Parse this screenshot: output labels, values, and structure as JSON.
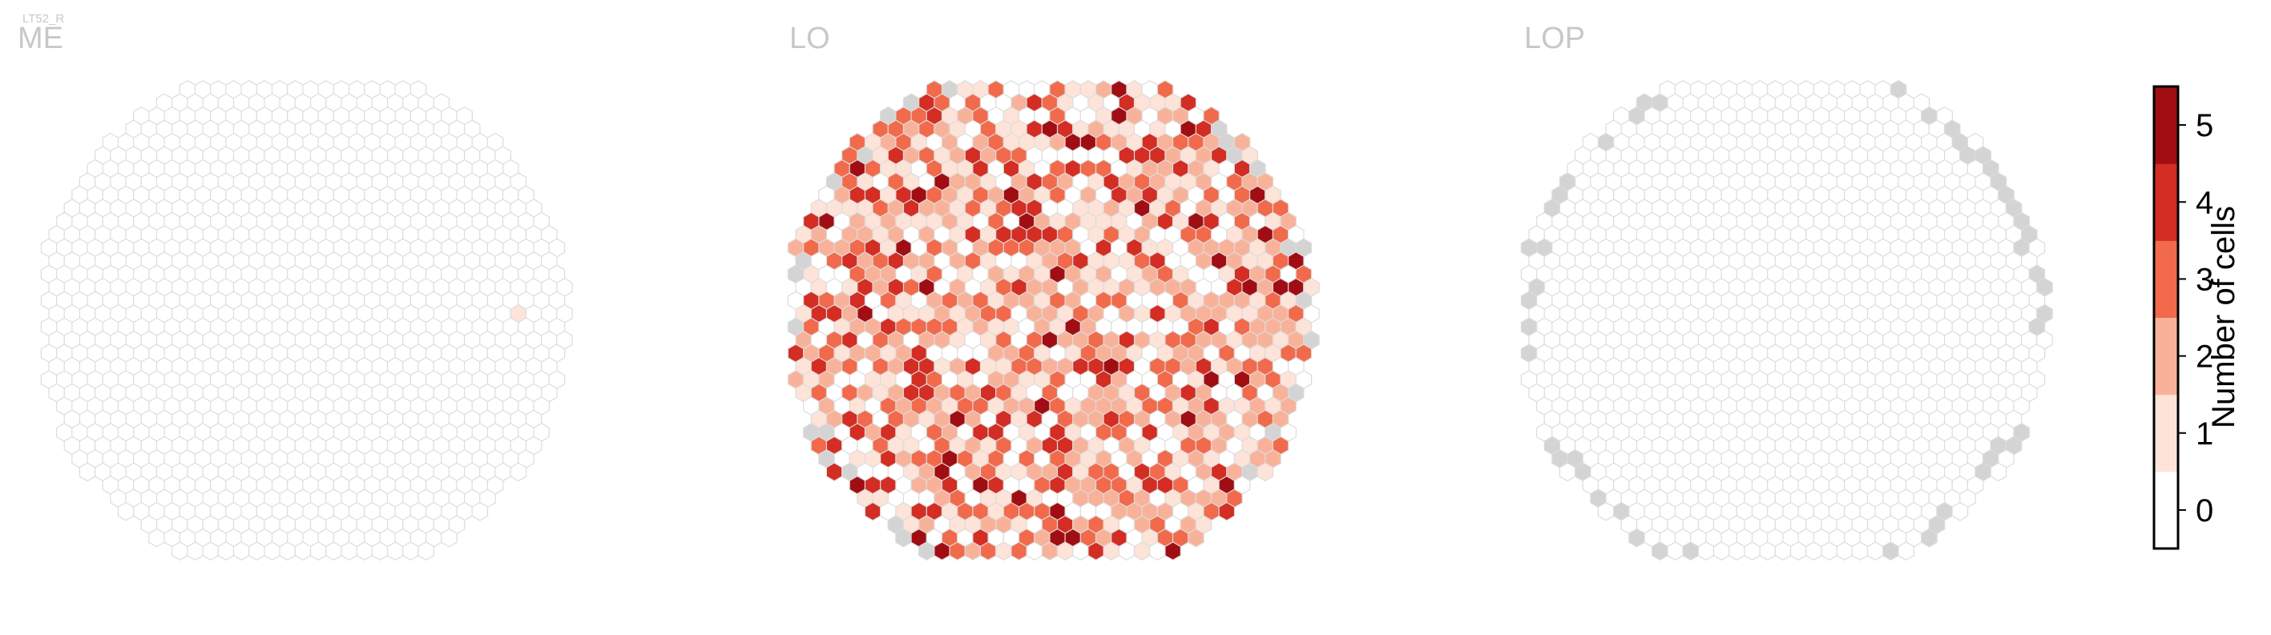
{
  "cell_type": "LT52_R",
  "chart_data": {
    "type": "heatmap",
    "panels": [
      {
        "title": "ME",
        "cols": 34,
        "rows": 36,
        "coverage": {
          "tint_1": 0.0,
          "tint_2": 0.0,
          "tint_3": 0.0,
          "tint_4": 0.0,
          "tint_5": 0.0
        },
        "highlight": [
          [
            30,
            17,
            1
          ]
        ],
        "missing_ring": false
      },
      {
        "title": "LO",
        "cols": 34,
        "rows": 36,
        "coverage": {
          "tint_1": 0.22,
          "tint_2": 0.22,
          "tint_3": 0.18,
          "tint_4": 0.12,
          "tint_5": 0.05
        },
        "highlight": [],
        "missing_ring": true,
        "ring_fraction": 0.25
      },
      {
        "title": "LOP",
        "cols": 34,
        "rows": 36,
        "coverage": {
          "tint_1": 0.0,
          "tint_2": 0.0,
          "tint_3": 0.0,
          "tint_4": 0.0,
          "tint_5": 0.0
        },
        "highlight": [],
        "missing_ring": true,
        "ring_fraction": 0.55
      }
    ],
    "colorbar": {
      "label": "Number of cells",
      "ticks": [
        "0",
        "1",
        "2",
        "3",
        "4",
        "5"
      ],
      "colors": [
        "#ffffff",
        "#fde3d8",
        "#f9b29a",
        "#f26a4c",
        "#d32d24",
        "#a00e14"
      ]
    },
    "empty_color": "#ffffff",
    "missing_color": "#d4d4d4",
    "outline_color": "#dcdcdc"
  }
}
